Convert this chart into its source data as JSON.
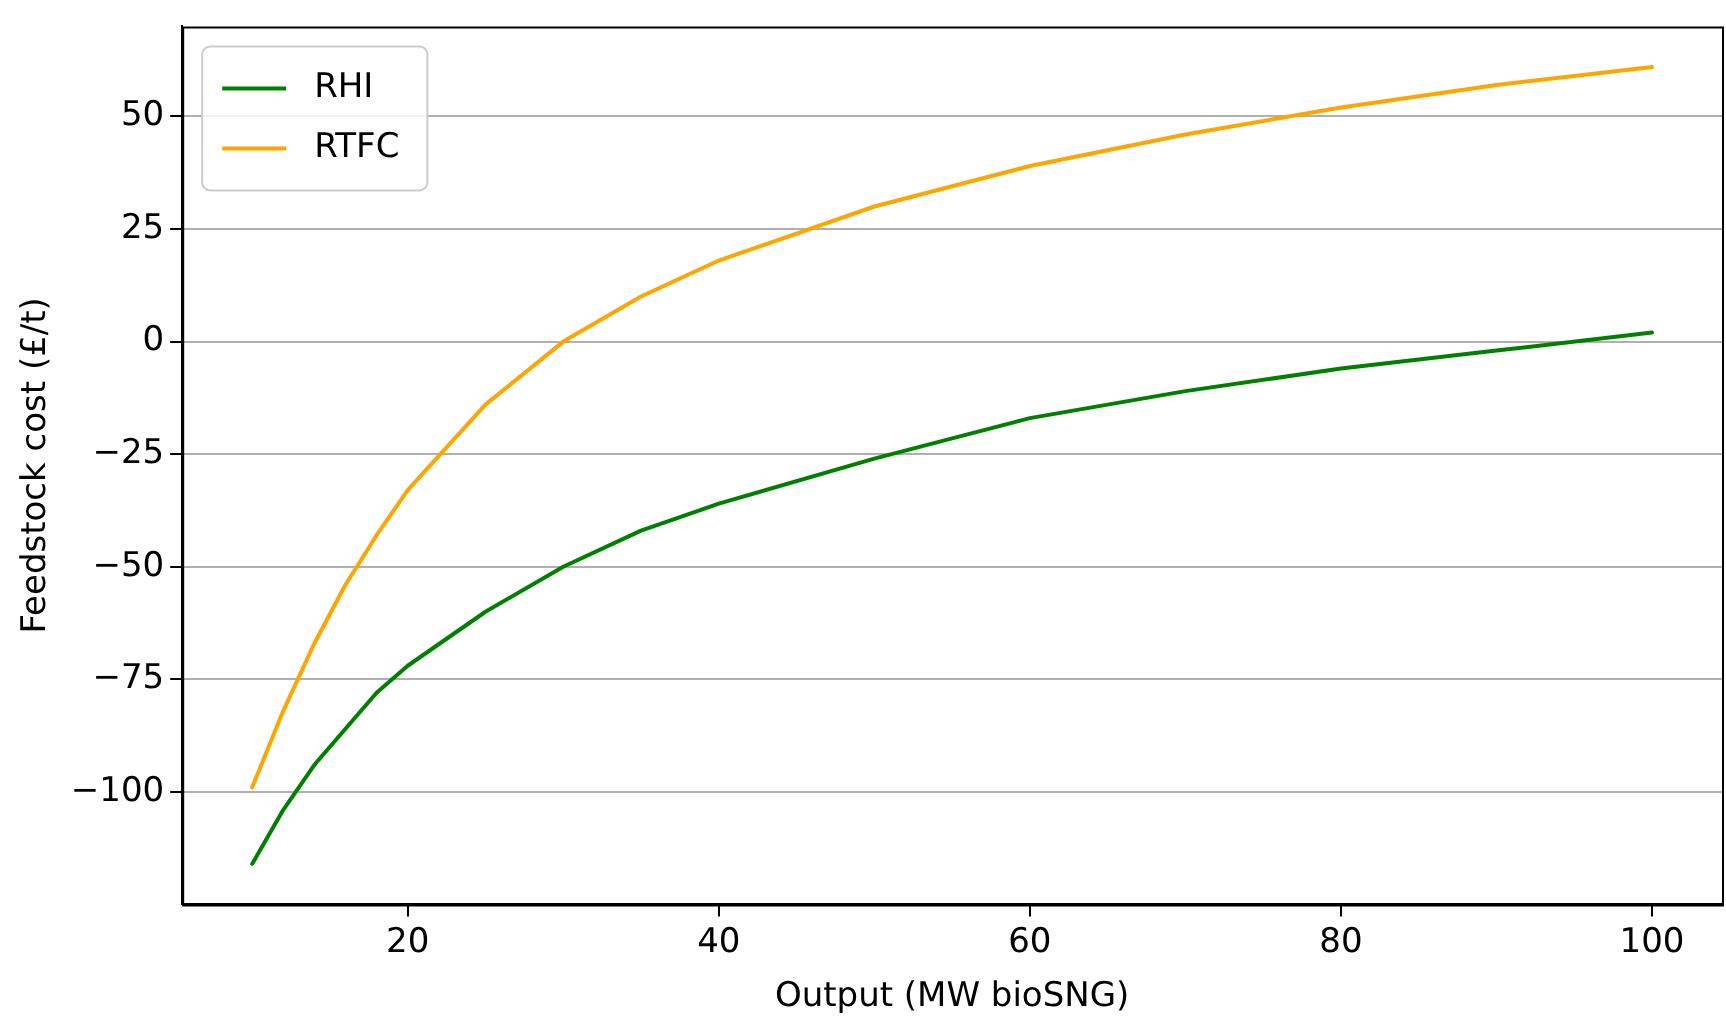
{
  "chart_data": {
    "type": "line",
    "xlabel": "Output (MW bioSNG)",
    "ylabel": "Feedstock cost (£/t)",
    "x": [
      10,
      12,
      14,
      16,
      18,
      20,
      25,
      30,
      35,
      40,
      50,
      60,
      70,
      80,
      90,
      100
    ],
    "series": [
      {
        "name": "RHI",
        "color": "#008000",
        "values": [
          -116,
          -104,
          -94,
          -86,
          -78,
          -72,
          -60,
          -50,
          -42,
          -36,
          -26,
          -17,
          -11,
          -6,
          -2,
          2
        ]
      },
      {
        "name": "RTFC",
        "color": "#ffa500",
        "values": [
          -99,
          -82,
          -67,
          -54,
          -43,
          -33,
          -14,
          0,
          10,
          18,
          30,
          39,
          46,
          52,
          57,
          61
        ]
      }
    ],
    "xlim": [
      5.5,
      104.5
    ],
    "xticks": [
      20,
      40,
      60,
      80,
      100
    ],
    "ylim": [
      -125,
      70
    ],
    "yticks": [
      {
        "value": -100,
        "label": "−100"
      },
      {
        "value": -75,
        "label": "−75"
      },
      {
        "value": -50,
        "label": "−50"
      },
      {
        "value": -25,
        "label": "−25"
      },
      0,
      25,
      50
    ],
    "grid": "y",
    "legend": "top left",
    "marker": "none",
    "line_style": "solid"
  }
}
